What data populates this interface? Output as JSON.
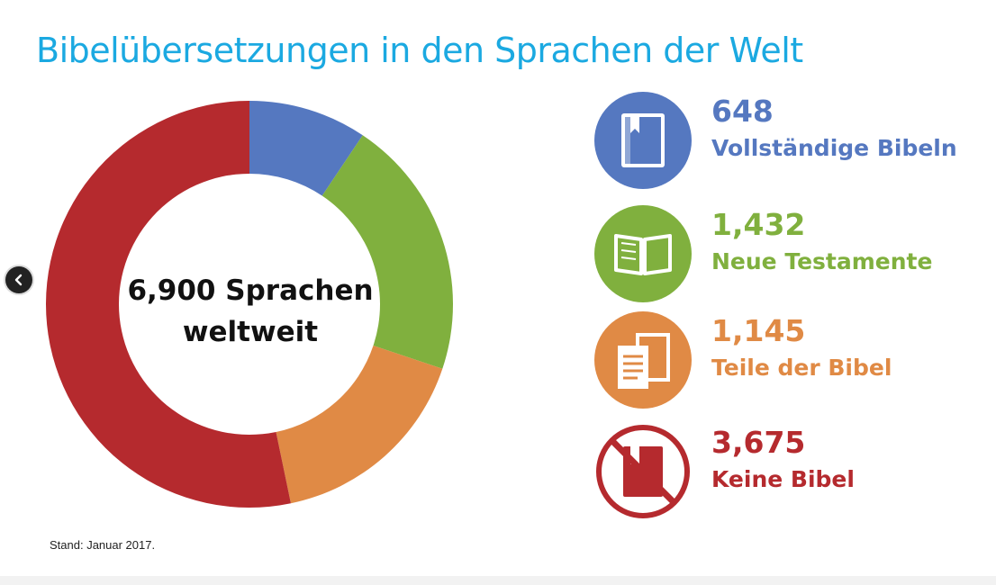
{
  "title": "Bibelübersetzungen in den Sprachen der Welt",
  "center_text": [
    "6,900 Sprachen",
    "weltweit"
  ],
  "footnote": "Stand: Januar 2017.",
  "nav": {
    "icon": "chevron-left-icon"
  },
  "chart_data": {
    "type": "pie",
    "title": "Bibelübersetzungen in den Sprachen der Welt",
    "total_label": "6,900 Sprachen weltweit",
    "categories": [
      "Vollständige Bibeln",
      "Neue Testamente",
      "Teile der Bibel",
      "Keine Bibel"
    ],
    "values": [
      648,
      1432,
      1145,
      3675
    ],
    "value_labels": [
      "648",
      "1,432",
      "1,145",
      "3,675"
    ],
    "colors": [
      "#5578c0",
      "#80b03e",
      "#e08a45",
      "#b52a2e"
    ],
    "icons": [
      "bible-icon",
      "open-book-icon",
      "document-pages-icon",
      "no-bible-icon"
    ]
  }
}
